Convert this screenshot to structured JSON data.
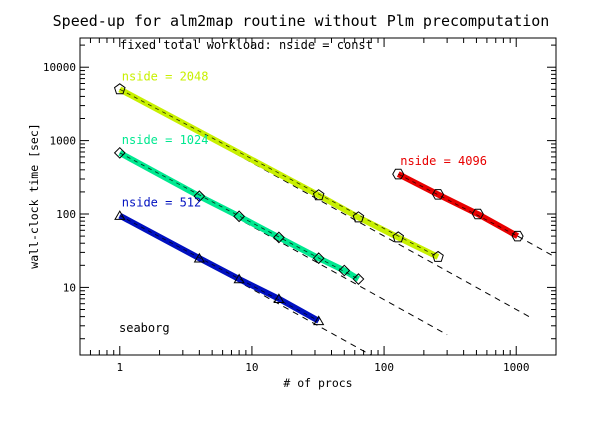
{
  "chart_data": {
    "type": "scatter",
    "title": "Speed-up for alm2map routine without Plm precomputation",
    "subtitle": "fixed total workload: nside = const",
    "xlabel": "# of procs",
    "ylabel": "wall-clock time [sec]",
    "x_scale": "log",
    "y_scale": "log",
    "xlim": [
      0.5,
      2000
    ],
    "ylim": [
      1.2,
      25000
    ],
    "x_ticks": [
      1,
      10,
      100,
      1000
    ],
    "x_tick_labels": [
      "1",
      "10",
      "100",
      "1000"
    ],
    "y_ticks": [
      10,
      100,
      1000,
      10000
    ],
    "y_tick_labels": [
      "10",
      "100",
      "1000",
      "10000"
    ],
    "grid": false,
    "annotation": "seaborg",
    "series": [
      {
        "name": "nside = 2048",
        "color": "#c8f000",
        "marker": "pentagon",
        "x": [
          1,
          32,
          64,
          128,
          256
        ],
        "y": [
          5000,
          180,
          90,
          48,
          26
        ],
        "ideal_line": {
          "x": [
            1,
            1300
          ],
          "y": [
            5000,
            3.85
          ]
        }
      },
      {
        "name": "nside = 1024",
        "color": "#00e890",
        "marker": "diamond",
        "x": [
          1,
          4,
          8,
          16,
          32,
          50,
          64
        ],
        "y": [
          680,
          175,
          93,
          48,
          25,
          17,
          13
        ],
        "ideal_line": {
          "x": [
            1,
            300
          ],
          "y": [
            680,
            2.27
          ]
        }
      },
      {
        "name": "nside = 512",
        "color": "#0010c0",
        "marker": "triangle",
        "x": [
          1,
          4,
          8,
          16,
          32
        ],
        "y": [
          95,
          25,
          13,
          7,
          3.5
        ],
        "ideal_line": {
          "x": [
            1,
            80
          ],
          "y": [
            95,
            1.19
          ]
        }
      },
      {
        "name": "nside = 4096",
        "color": "#e80000",
        "marker": "hexagon",
        "x": [
          128,
          256,
          512,
          1024
        ],
        "y": [
          350,
          185,
          100,
          50
        ],
        "ideal_line": {
          "x": [
            1024,
            2000
          ],
          "y": [
            50,
            25.6
          ]
        }
      }
    ]
  }
}
